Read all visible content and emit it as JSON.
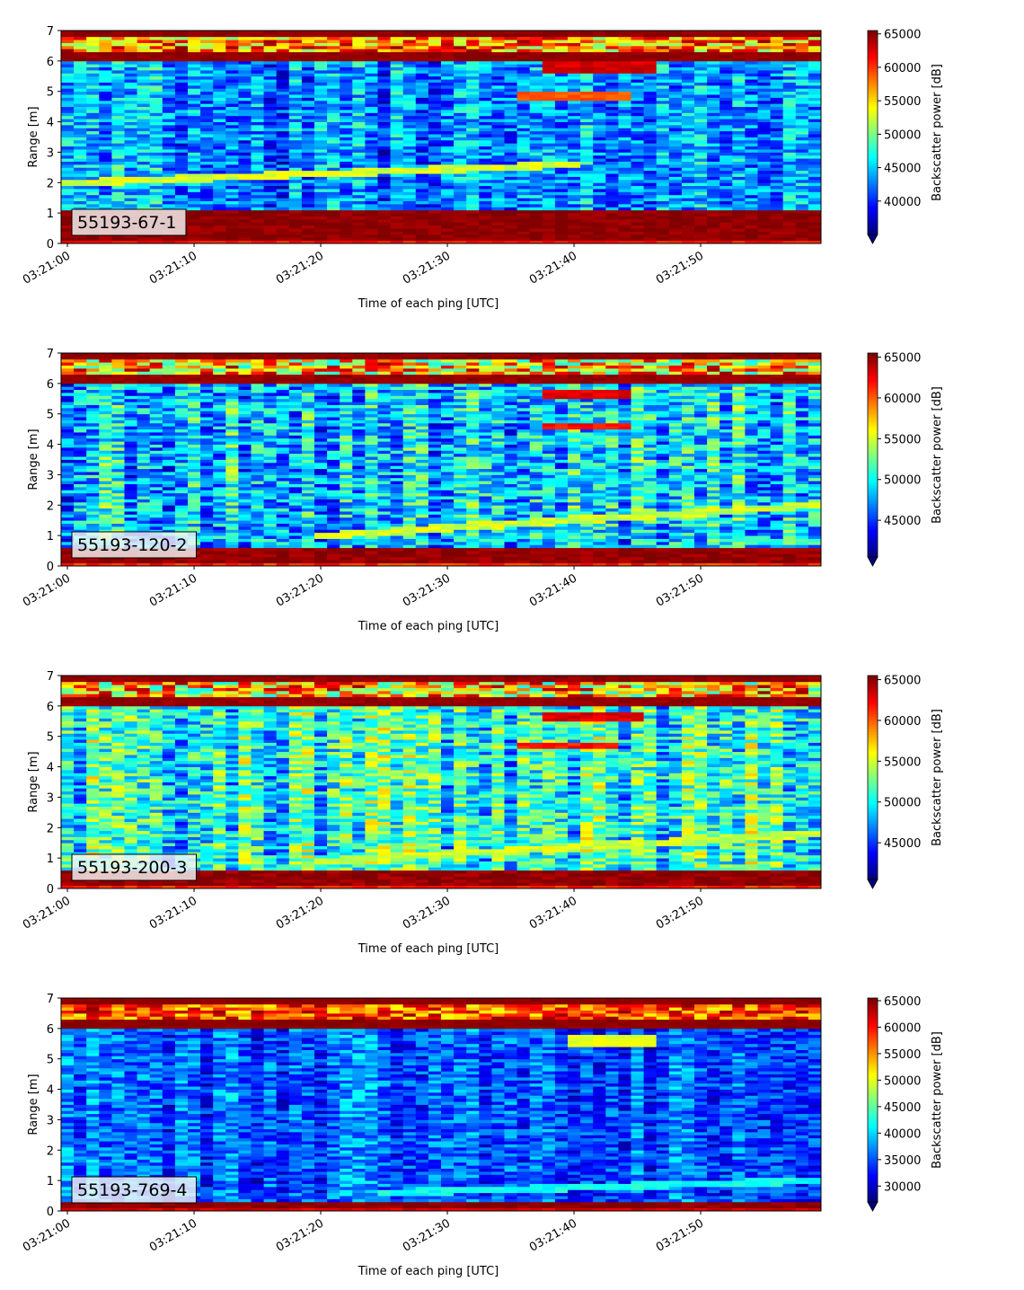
{
  "chart_data": [
    {
      "type": "heatmap",
      "label": "55193-67-1",
      "xlabel": "Time of each ping [UTC]",
      "ylabel": "Range [m]",
      "xticks": [
        "03:21:00",
        "03:21:10",
        "03:21:20",
        "03:21:30",
        "03:21:40",
        "03:21:50"
      ],
      "xlim": [
        -0.5,
        59.5
      ],
      "ylim": [
        0,
        7
      ],
      "yticks": [
        0,
        1,
        2,
        3,
        4,
        5,
        6,
        7
      ],
      "colorbar": {
        "label": "Backscatter power [dB]",
        "range": [
          35000,
          65500
        ],
        "ticks": [
          40000,
          45000,
          50000,
          55000,
          60000,
          65000
        ],
        "extend": "min"
      },
      "colormap": "jet",
      "features": {
        "surface_band": [
          0.1,
          1.1
        ],
        "top_band": [
          6.05,
          7.0
        ],
        "noise_base": 43000,
        "echo_trail": {
          "from_time": 0,
          "from_range": 2.0,
          "to_time": 40,
          "to_range": 2.6,
          "value": 53000
        },
        "bright_echoes": [
          {
            "time": [
              36,
              44
            ],
            "range": [
              4.7,
              5.0
            ],
            "value": 59000
          },
          {
            "time": [
              38,
              46
            ],
            "range": [
              5.6,
              6.0
            ],
            "value": 63000
          }
        ]
      }
    },
    {
      "type": "heatmap",
      "label": "55193-120-2",
      "xlabel": "Time of each ping [UTC]",
      "ylabel": "Range [m]",
      "xticks": [
        "03:21:00",
        "03:21:10",
        "03:21:20",
        "03:21:30",
        "03:21:40",
        "03:21:50"
      ],
      "xlim": [
        -0.5,
        59.5
      ],
      "ylim": [
        0,
        7
      ],
      "yticks": [
        0,
        1,
        2,
        3,
        4,
        5,
        6,
        7
      ],
      "colorbar": {
        "label": "Backscatter power [dB]",
        "range": [
          40500,
          65500
        ],
        "ticks": [
          45000,
          50000,
          55000,
          60000,
          65000
        ],
        "extend": "min"
      },
      "colormap": "jet",
      "features": {
        "surface_band": [
          0.1,
          0.6
        ],
        "top_band": [
          6.0,
          7.0
        ],
        "noise_base": 48500,
        "echo_trail": {
          "from_time": 20,
          "from_range": 1.0,
          "to_time": 59,
          "to_range": 2.0,
          "value": 55000
        },
        "bright_echoes": [
          {
            "time": [
              38,
              44
            ],
            "range": [
              4.5,
              4.7
            ],
            "value": 62000
          },
          {
            "time": [
              38,
              44
            ],
            "range": [
              5.5,
              5.8
            ],
            "value": 63000
          }
        ]
      }
    },
    {
      "type": "heatmap",
      "label": "55193-200-3",
      "xlabel": "Time of each ping [UTC]",
      "ylabel": "Range [m]",
      "xticks": [
        "03:21:00",
        "03:21:10",
        "03:21:20",
        "03:21:30",
        "03:21:40",
        "03:21:50"
      ],
      "xlim": [
        -0.5,
        59.5
      ],
      "ylim": [
        0,
        7
      ],
      "yticks": [
        0,
        1,
        2,
        3,
        4,
        5,
        6,
        7
      ],
      "colorbar": {
        "label": "Backscatter power [dB]",
        "range": [
          40500,
          65500
        ],
        "ticks": [
          45000,
          50000,
          55000,
          60000,
          65000
        ],
        "extend": "min"
      },
      "colormap": "jet",
      "features": {
        "surface_band": [
          0.1,
          0.55
        ],
        "top_band": [
          6.0,
          7.0
        ],
        "noise_base": 50500,
        "echo_trail": {
          "from_time": 20,
          "from_range": 0.9,
          "to_time": 59,
          "to_range": 1.8,
          "value": 55000
        },
        "bright_echoes": [
          {
            "time": [
              36,
              43
            ],
            "range": [
              4.6,
              4.8
            ],
            "value": 62000
          },
          {
            "time": [
              38,
              45
            ],
            "range": [
              5.5,
              5.8
            ],
            "value": 63000
          }
        ]
      }
    },
    {
      "type": "heatmap",
      "label": "55193-769-4",
      "xlabel": "Time of each ping [UTC]",
      "ylabel": "Range [m]",
      "xticks": [
        "03:21:00",
        "03:21:10",
        "03:21:20",
        "03:21:30",
        "03:21:40",
        "03:21:50"
      ],
      "xlim": [
        -0.5,
        59.5
      ],
      "ylim": [
        0,
        7
      ],
      "yticks": [
        0,
        1,
        2,
        3,
        4,
        5,
        6,
        7
      ],
      "colorbar": {
        "label": "Backscatter power [dB]",
        "range": [
          27000,
          65500
        ],
        "ticks": [
          30000,
          35000,
          40000,
          45000,
          50000,
          55000,
          60000,
          65000
        ],
        "extend": "min"
      },
      "colormap": "jet",
      "features": {
        "surface_band": [
          0.1,
          0.35
        ],
        "top_band": [
          6.0,
          7.0
        ],
        "noise_base": 35000,
        "echo_trail": {
          "from_time": 25,
          "from_range": 0.6,
          "to_time": 59,
          "to_range": 1.0,
          "value": 42000
        },
        "bright_echoes": [
          {
            "time": [
              40,
              46
            ],
            "range": [
              5.4,
              5.8
            ],
            "value": 50000
          }
        ]
      }
    }
  ]
}
